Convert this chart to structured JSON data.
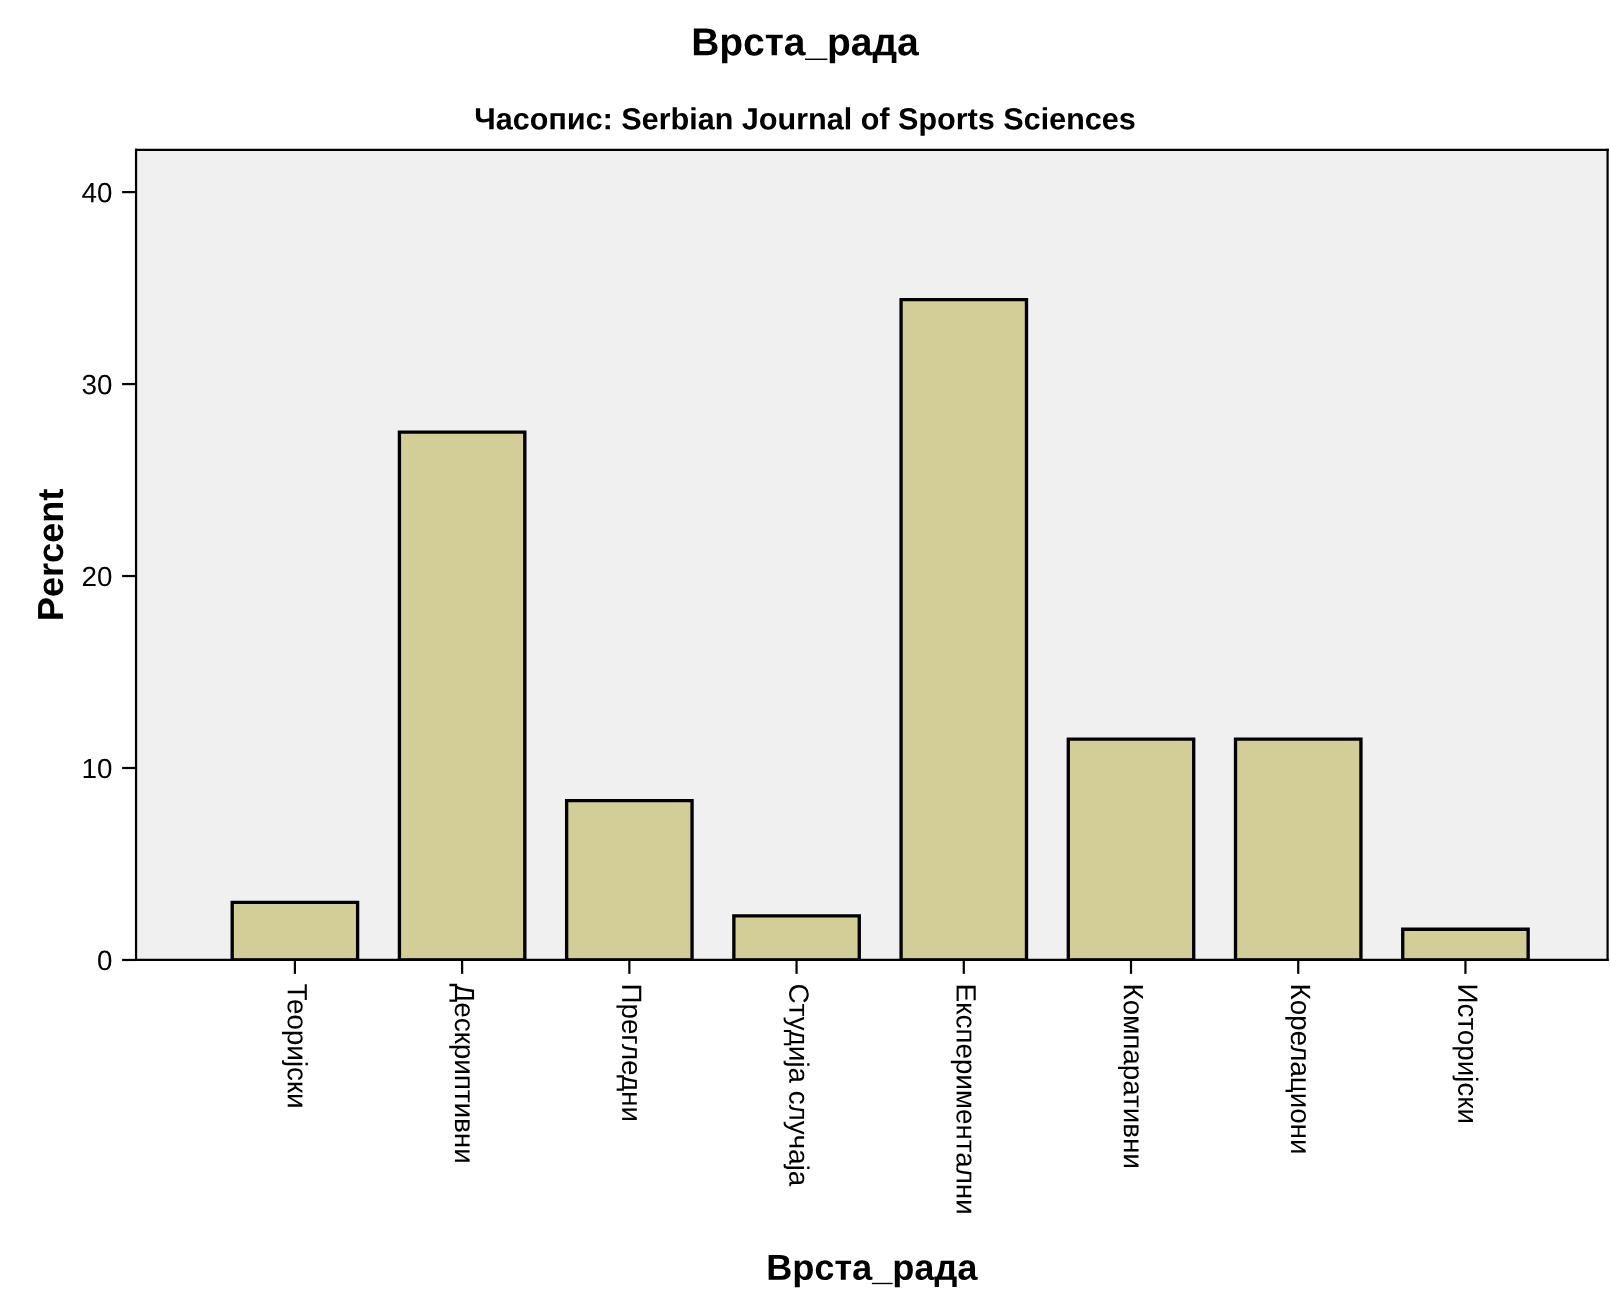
{
  "chart_data": {
    "type": "bar",
    "title": "Врста_рада",
    "subtitle": "Часопис: Serbian Journal of Sports Sciences",
    "xlabel": "Врста_рада",
    "ylabel": "Percent",
    "categories": [
      "Теоријски",
      "Дескриптивни",
      "Прегледни",
      "Студија случаја",
      "Експериментални",
      "Компаративни",
      "Корелациони",
      "Историјски"
    ],
    "values": [
      3.0,
      27.5,
      8.3,
      2.3,
      34.4,
      11.5,
      11.5,
      1.6
    ],
    "color": "#d3ce97",
    "ylim": [
      0,
      42.2
    ],
    "yticks": [
      0,
      10,
      20,
      30,
      40
    ],
    "grid": false
  }
}
